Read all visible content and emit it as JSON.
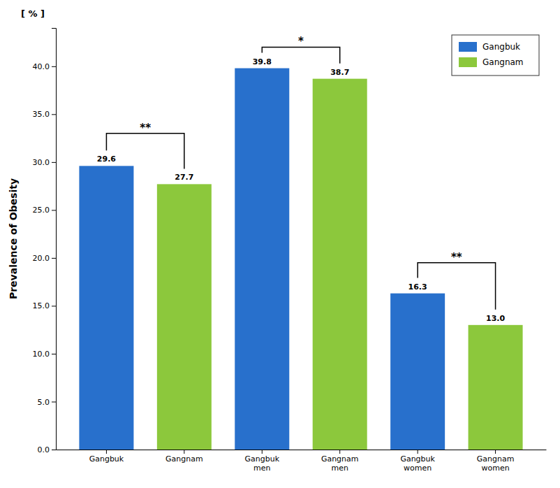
{
  "chart_data": {
    "type": "bar",
    "categories": [
      "Gangbuk",
      "Gangnam",
      "Gangbuk\nmen",
      "Gangnam\nmen",
      "Gangbuk\nwomen",
      "Gangnam\nwomen"
    ],
    "series": [
      {
        "name": "Gangbuk",
        "color": "#2870CC",
        "values": [
          29.6,
          null,
          39.8,
          null,
          16.3,
          null
        ]
      },
      {
        "name": "Gangnam",
        "color": "#8CC83C",
        "values": [
          null,
          27.7,
          null,
          38.7,
          null,
          13.0
        ],
        "value_labels": [
          null,
          "27.7",
          null,
          "38.7",
          null,
          "13.0"
        ]
      }
    ],
    "ylabel": "Prevalence of Obesity",
    "ylim": [
      0,
      44
    ],
    "yticks": [
      {
        "value": 0,
        "label": "0.0"
      },
      {
        "value": 5,
        "label": "5.0"
      },
      {
        "value": 10,
        "label": "10.0"
      },
      {
        "value": 15,
        "label": "15.0"
      },
      {
        "value": 20,
        "label": "20.0"
      },
      {
        "value": 25,
        "label": "25.0"
      },
      {
        "value": 30,
        "label": "30.0"
      },
      {
        "value": 35,
        "label": "35.0"
      },
      {
        "value": 40,
        "label": "40.0"
      }
    ],
    "annotations": [
      {
        "text": "[ % ]"
      },
      {
        "text": "**",
        "from": "Gangbuk",
        "to": "Gangnam",
        "y": 33.0
      },
      {
        "text": "*",
        "from": "Gangbuk\nmen",
        "to": "Gangnam\nmen",
        "y": 42.0
      },
      {
        "text": "**",
        "from": "Gangbuk\nwomen",
        "to": "Gangnam\nwomen",
        "y": 19.5
      }
    ],
    "data_labels": true,
    "legend": "upper right",
    "grid": false
  }
}
